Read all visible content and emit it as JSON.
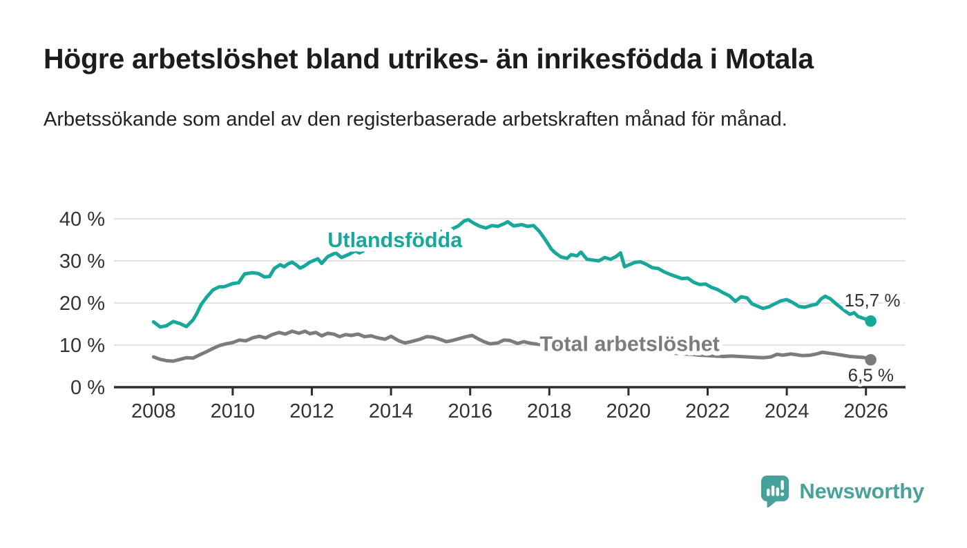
{
  "header": {
    "title": "Högre arbetslöshet bland utrikes- än inrikesfödda i Motala",
    "subtitle": "Arbetssökande som andel av den registerbaserade arbetskraften månad för månad."
  },
  "chart_data": {
    "type": "line",
    "title": "Högre arbetslöshet bland utrikes- än inrikesfödda i Motala",
    "subtitle": "Arbetssökande som andel av den registerbaserade arbetskraften månad för månad.",
    "xlabel": "",
    "ylabel": "",
    "x_axis": {
      "range": [
        2007.0,
        2027.0
      ],
      "ticks": [
        2008,
        2010,
        2012,
        2014,
        2016,
        2018,
        2020,
        2022,
        2024,
        2026
      ],
      "gridlines": false
    },
    "y_axis": {
      "range": [
        0,
        44
      ],
      "ticks": [
        {
          "value": 0,
          "label": "0 %"
        },
        {
          "value": 10,
          "label": "10 %"
        },
        {
          "value": 20,
          "label": "20 %"
        },
        {
          "value": 30,
          "label": "30 %"
        },
        {
          "value": 40,
          "label": "40 %"
        }
      ],
      "gridlines": true
    },
    "colors": {
      "gridline": "#d9d9d9",
      "axis": "#2d2d2d",
      "tick_text": "#333333",
      "value_label_text": "#333333"
    },
    "series": [
      {
        "name": "Total arbetslöshet",
        "color": "#7c7c7c",
        "label": {
          "text": "Total arbetslöshet",
          "year": 2020.03,
          "value": 10.4
        },
        "end_label": {
          "text": "6,5 %",
          "dx": -33,
          "dy": 31
        },
        "end_value": 6.5,
        "points": [
          [
            2008.0,
            7.2
          ],
          [
            2008.17,
            6.6
          ],
          [
            2008.33,
            6.3
          ],
          [
            2008.5,
            6.2
          ],
          [
            2008.67,
            6.6
          ],
          [
            2008.83,
            7.0
          ],
          [
            2009.0,
            6.9
          ],
          [
            2009.17,
            7.7
          ],
          [
            2009.33,
            8.4
          ],
          [
            2009.5,
            9.2
          ],
          [
            2009.67,
            9.9
          ],
          [
            2009.83,
            10.3
          ],
          [
            2010.0,
            10.6
          ],
          [
            2010.17,
            11.2
          ],
          [
            2010.33,
            11.0
          ],
          [
            2010.5,
            11.7
          ],
          [
            2010.67,
            12.1
          ],
          [
            2010.83,
            11.7
          ],
          [
            2011.0,
            12.5
          ],
          [
            2011.17,
            13.0
          ],
          [
            2011.33,
            12.6
          ],
          [
            2011.5,
            13.3
          ],
          [
            2011.67,
            12.8
          ],
          [
            2011.83,
            13.3
          ],
          [
            2011.95,
            12.7
          ],
          [
            2012.1,
            13.0
          ],
          [
            2012.25,
            12.2
          ],
          [
            2012.4,
            12.8
          ],
          [
            2012.55,
            12.6
          ],
          [
            2012.7,
            12.0
          ],
          [
            2012.85,
            12.5
          ],
          [
            2013.0,
            12.3
          ],
          [
            2013.17,
            12.6
          ],
          [
            2013.33,
            12.0
          ],
          [
            2013.5,
            12.2
          ],
          [
            2013.67,
            11.7
          ],
          [
            2013.85,
            11.4
          ],
          [
            2014.0,
            12.1
          ],
          [
            2014.2,
            11.0
          ],
          [
            2014.35,
            10.5
          ],
          [
            2014.5,
            10.8
          ],
          [
            2014.7,
            11.3
          ],
          [
            2014.9,
            12.0
          ],
          [
            2015.05,
            11.9
          ],
          [
            2015.2,
            11.5
          ],
          [
            2015.4,
            10.8
          ],
          [
            2015.55,
            11.1
          ],
          [
            2015.75,
            11.6
          ],
          [
            2015.9,
            12.0
          ],
          [
            2016.05,
            12.3
          ],
          [
            2016.2,
            11.5
          ],
          [
            2016.35,
            10.8
          ],
          [
            2016.5,
            10.3
          ],
          [
            2016.7,
            10.5
          ],
          [
            2016.85,
            11.2
          ],
          [
            2017.0,
            11.1
          ],
          [
            2017.2,
            10.4
          ],
          [
            2017.35,
            10.8
          ],
          [
            2017.55,
            10.4
          ],
          [
            2017.8,
            10.1
          ],
          [
            2018.1,
            9.7
          ],
          [
            2018.4,
            9.4
          ],
          [
            2018.7,
            9.1
          ],
          [
            2019.0,
            8.9
          ],
          [
            2019.3,
            8.7
          ],
          [
            2019.6,
            8.6
          ],
          [
            2019.9,
            8.5
          ],
          [
            2020.2,
            8.7
          ],
          [
            2020.5,
            8.5
          ],
          [
            2020.8,
            8.3
          ],
          [
            2021.1,
            8.1
          ],
          [
            2021.4,
            7.9
          ],
          [
            2021.6,
            7.8
          ],
          [
            2021.8,
            7.6
          ],
          [
            2022.0,
            7.5
          ],
          [
            2022.2,
            7.4
          ],
          [
            2022.4,
            7.3
          ],
          [
            2022.6,
            7.4
          ],
          [
            2022.8,
            7.3
          ],
          [
            2023.0,
            7.2
          ],
          [
            2023.2,
            7.1
          ],
          [
            2023.4,
            7.0
          ],
          [
            2023.6,
            7.2
          ],
          [
            2023.75,
            7.8
          ],
          [
            2023.9,
            7.6
          ],
          [
            2024.1,
            7.9
          ],
          [
            2024.25,
            7.7
          ],
          [
            2024.4,
            7.5
          ],
          [
            2024.6,
            7.6
          ],
          [
            2024.75,
            7.9
          ],
          [
            2024.9,
            8.3
          ],
          [
            2025.05,
            8.1
          ],
          [
            2025.2,
            7.9
          ],
          [
            2025.4,
            7.6
          ],
          [
            2025.6,
            7.3
          ],
          [
            2025.75,
            7.2
          ],
          [
            2025.9,
            7.1
          ],
          [
            2026.05,
            6.9
          ],
          [
            2026.12,
            6.5
          ]
        ]
      },
      {
        "name": "Utlandsfödda",
        "color": "#17a79b",
        "label": {
          "text": "Utlandsfödda",
          "year": 2014.1,
          "value": 35.1
        },
        "end_label": {
          "text": "15,7 %",
          "dx": -38,
          "dy": -21
        },
        "end_value": 15.7,
        "points": [
          [
            2008.0,
            15.5
          ],
          [
            2008.17,
            14.3
          ],
          [
            2008.33,
            14.6
          ],
          [
            2008.5,
            15.6
          ],
          [
            2008.67,
            15.1
          ],
          [
            2008.83,
            14.4
          ],
          [
            2009.0,
            16.0
          ],
          [
            2009.1,
            17.6
          ],
          [
            2009.2,
            19.6
          ],
          [
            2009.35,
            21.5
          ],
          [
            2009.5,
            23.1
          ],
          [
            2009.65,
            23.8
          ],
          [
            2009.8,
            23.9
          ],
          [
            2010.0,
            24.6
          ],
          [
            2010.15,
            24.8
          ],
          [
            2010.3,
            26.9
          ],
          [
            2010.5,
            27.2
          ],
          [
            2010.65,
            27.0
          ],
          [
            2010.8,
            26.2
          ],
          [
            2010.93,
            26.3
          ],
          [
            2011.05,
            28.2
          ],
          [
            2011.2,
            29.1
          ],
          [
            2011.3,
            28.6
          ],
          [
            2011.4,
            29.3
          ],
          [
            2011.5,
            29.7
          ],
          [
            2011.6,
            29.1
          ],
          [
            2011.7,
            28.3
          ],
          [
            2011.8,
            28.7
          ],
          [
            2011.95,
            29.7
          ],
          [
            2012.15,
            30.5
          ],
          [
            2012.25,
            29.4
          ],
          [
            2012.4,
            31.0
          ],
          [
            2012.6,
            31.9
          ],
          [
            2012.75,
            30.8
          ],
          [
            2012.95,
            31.6
          ],
          [
            2013.1,
            32.4
          ],
          [
            2013.2,
            31.9
          ],
          [
            2013.37,
            32.7
          ],
          [
            2013.45,
            33.0
          ],
          [
            2013.6,
            32.6
          ],
          [
            2013.75,
            32.9
          ],
          [
            2014.0,
            33.3
          ],
          [
            2014.25,
            34.0
          ],
          [
            2014.5,
            34.8
          ],
          [
            2014.75,
            35.8
          ],
          [
            2015.0,
            36.5
          ],
          [
            2015.2,
            36.9
          ],
          [
            2015.4,
            37.2
          ],
          [
            2015.55,
            37.6
          ],
          [
            2015.7,
            38.3
          ],
          [
            2015.85,
            39.5
          ],
          [
            2015.95,
            39.8
          ],
          [
            2016.1,
            38.9
          ],
          [
            2016.25,
            38.2
          ],
          [
            2016.4,
            37.8
          ],
          [
            2016.55,
            38.4
          ],
          [
            2016.7,
            38.2
          ],
          [
            2016.85,
            38.8
          ],
          [
            2016.95,
            39.3
          ],
          [
            2017.1,
            38.3
          ],
          [
            2017.3,
            38.6
          ],
          [
            2017.45,
            38.2
          ],
          [
            2017.6,
            38.4
          ],
          [
            2017.75,
            37.0
          ],
          [
            2017.9,
            35.0
          ],
          [
            2018.05,
            32.8
          ],
          [
            2018.15,
            31.9
          ],
          [
            2018.3,
            30.9
          ],
          [
            2018.45,
            30.6
          ],
          [
            2018.55,
            31.5
          ],
          [
            2018.7,
            31.2
          ],
          [
            2018.8,
            32.1
          ],
          [
            2018.95,
            30.4
          ],
          [
            2019.1,
            30.2
          ],
          [
            2019.25,
            30.0
          ],
          [
            2019.4,
            30.8
          ],
          [
            2019.55,
            30.4
          ],
          [
            2019.68,
            31.0
          ],
          [
            2019.8,
            31.9
          ],
          [
            2019.9,
            28.6
          ],
          [
            2020.0,
            29.0
          ],
          [
            2020.15,
            29.6
          ],
          [
            2020.3,
            29.8
          ],
          [
            2020.45,
            29.2
          ],
          [
            2020.6,
            28.4
          ],
          [
            2020.75,
            28.2
          ],
          [
            2020.9,
            27.4
          ],
          [
            2021.05,
            26.8
          ],
          [
            2021.2,
            26.3
          ],
          [
            2021.35,
            25.8
          ],
          [
            2021.5,
            25.9
          ],
          [
            2021.65,
            24.9
          ],
          [
            2021.8,
            24.4
          ],
          [
            2021.95,
            24.5
          ],
          [
            2022.1,
            23.7
          ],
          [
            2022.25,
            23.2
          ],
          [
            2022.4,
            22.4
          ],
          [
            2022.55,
            21.7
          ],
          [
            2022.7,
            20.4
          ],
          [
            2022.85,
            21.5
          ],
          [
            2023.0,
            21.2
          ],
          [
            2023.12,
            19.8
          ],
          [
            2023.25,
            19.3
          ],
          [
            2023.4,
            18.7
          ],
          [
            2023.55,
            19.1
          ],
          [
            2023.7,
            19.8
          ],
          [
            2023.85,
            20.5
          ],
          [
            2024.0,
            20.8
          ],
          [
            2024.15,
            20.1
          ],
          [
            2024.3,
            19.2
          ],
          [
            2024.45,
            19.0
          ],
          [
            2024.6,
            19.4
          ],
          [
            2024.75,
            19.7
          ],
          [
            2024.87,
            21.0
          ],
          [
            2024.97,
            21.6
          ],
          [
            2025.1,
            21.0
          ],
          [
            2025.22,
            20.0
          ],
          [
            2025.35,
            19.0
          ],
          [
            2025.5,
            17.9
          ],
          [
            2025.6,
            17.3
          ],
          [
            2025.7,
            17.7
          ],
          [
            2025.8,
            16.8
          ],
          [
            2025.92,
            16.4
          ],
          [
            2026.05,
            16.0
          ],
          [
            2026.12,
            15.7
          ]
        ]
      }
    ]
  },
  "branding": {
    "logo_text": "Newsworthy",
    "logo_color": "#47a29d",
    "logo_icon": "newsworthy-speech-bubble-bar-chart-icon"
  }
}
